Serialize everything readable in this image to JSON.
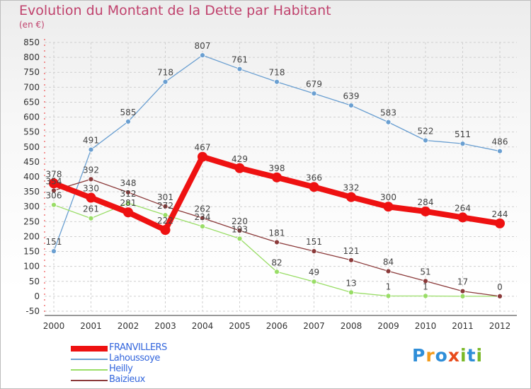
{
  "title": "Evolution du Montant de la Dette par Habitant",
  "unit": "(en €)",
  "logo": {
    "letters": [
      "P",
      "r",
      "o",
      "x",
      "i",
      "t",
      "i"
    ],
    "colors": [
      "#2f8ed8",
      "#f39b1c",
      "#2f8ed8",
      "#e84a1a",
      "#7ab929",
      "#2f8ed8",
      "#7ab929"
    ]
  },
  "chart_data": {
    "type": "line",
    "x": [
      "2000",
      "2001",
      "2002",
      "2003",
      "2004",
      "2005",
      "2006",
      "2007",
      "2008",
      "2009",
      "2010",
      "2011",
      "2012"
    ],
    "y_ticks": [
      -50,
      0,
      50,
      100,
      150,
      200,
      250,
      300,
      350,
      400,
      450,
      500,
      550,
      600,
      650,
      700,
      750,
      800,
      850
    ],
    "ylim": [
      -50,
      850
    ],
    "grid": true,
    "legend_position": "bottom-left",
    "series": [
      {
        "name": "FRANVILLERS",
        "color": "#ee1111",
        "label_color": "#3366dd",
        "thick": true,
        "values": [
          378,
          330,
          281,
          222,
          467,
          429,
          398,
          366,
          332,
          300,
          284,
          264,
          244
        ],
        "labels": [
          "378",
          "330",
          "281",
          "222",
          "467",
          "429",
          "398",
          "366",
          "332",
          "300",
          "284",
          "264",
          "244"
        ]
      },
      {
        "name": "Lahoussoye",
        "color": "#6a9fd1",
        "label_color": "#3366dd",
        "thick": false,
        "values": [
          151,
          491,
          585,
          718,
          807,
          761,
          718,
          679,
          639,
          583,
          522,
          511,
          486
        ],
        "labels": [
          "151",
          "491",
          "585",
          "718",
          "807",
          "761",
          "718",
          "679",
          "639",
          "583",
          "522",
          "511",
          "486"
        ]
      },
      {
        "name": "Heilly",
        "color": "#99dd66",
        "label_color": "#3366dd",
        "thick": false,
        "values": [
          306,
          261,
          312,
          272,
          234,
          193,
          82,
          49,
          13,
          1,
          1,
          0,
          0
        ],
        "labels": [
          "306",
          "261",
          "312",
          "272",
          "234",
          "193",
          "82",
          "49",
          "13",
          "1",
          "1",
          "",
          ""
        ]
      },
      {
        "name": "Baizieux",
        "color": "#8b3a3a",
        "label_color": "#3366dd",
        "thick": false,
        "values": [
          354,
          392,
          348,
          301,
          262,
          220,
          181,
          151,
          121,
          84,
          51,
          17,
          0
        ],
        "labels": [
          "354",
          "392",
          "348",
          "301",
          "262",
          "220",
          "181",
          "151",
          "121",
          "84",
          "51",
          "17",
          "0"
        ]
      }
    ]
  }
}
